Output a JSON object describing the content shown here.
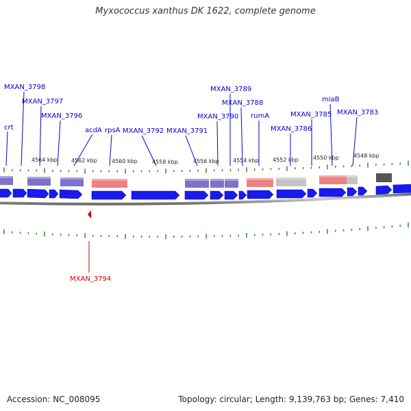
{
  "title": "Myxococcus xanthus DK 1622, complete genome",
  "accession_text": "Accession: NC_008095",
  "summary_text": "Topology: circular; Length: 9,139,763 bp; Genes: 7,410",
  "colors": {
    "label_blue": "#0000cc",
    "label_red": "#cc0000",
    "tick_green": "#2a8a2a",
    "gene_blue": "#1a1aee",
    "protein_purple": "#7d71c9",
    "protein_pink": "#ee8080",
    "protein_gray": "#c4c4c4",
    "protein_dark": "#555555",
    "backbone": "#888888"
  },
  "kbp_labels": [
    "4564 kbp",
    "4562 kbp",
    "4560 kbp",
    "4558 kbp",
    "4556 kbp",
    "4554 kbp",
    "4552 kbp",
    "4550 kbp",
    "4548 kbp"
  ],
  "genes_above": [
    "crt",
    "MXAN_3798",
    "MXAN_3797",
    "MXAN_3796",
    "acdA",
    "rpsA",
    "MXAN_3792",
    "MXAN_3791",
    "MXAN_3790",
    "MXAN_3789",
    "MXAN_3788",
    "rumA",
    "MXAN_3786",
    "MXAN_3785",
    "miaB",
    "MXAN_3783"
  ],
  "genes_below": [
    "MXAN_3794"
  ]
}
